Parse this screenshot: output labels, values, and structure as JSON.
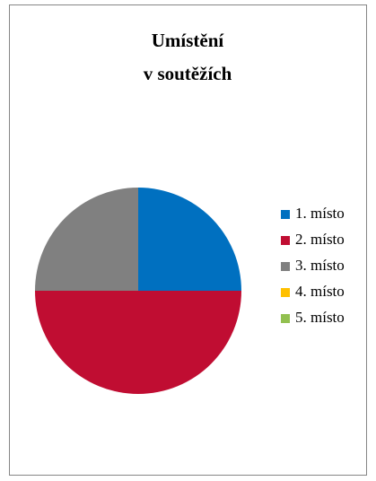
{
  "chart_data": {
    "type": "pie",
    "title": [
      "Umístění",
      "v soutěžích"
    ],
    "categories": [
      "1. místo",
      "2. místo",
      "3. místo",
      "4. místo",
      "5. místo"
    ],
    "values": [
      25,
      50,
      25,
      0,
      0
    ],
    "colors": [
      "#0070c0",
      "#c00d32",
      "#808080",
      "#ffc000",
      "#92c050"
    ],
    "legend": "right"
  }
}
